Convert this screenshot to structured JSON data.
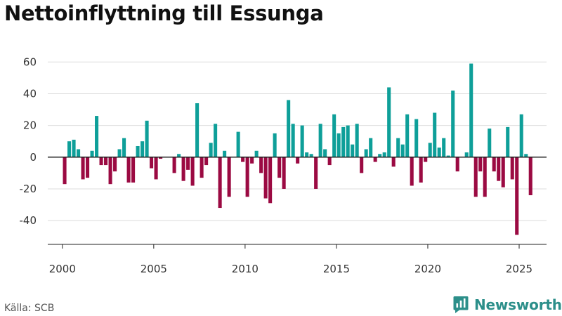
{
  "title": "Nettoinflyttning till Essunga",
  "source": "Källa: SCB",
  "brand": {
    "name": "Newsworthy",
    "icon": "newsworthy-logo-icon"
  },
  "colors": {
    "positive": "#0e9f99",
    "negative": "#9b0a42",
    "axis": "#222222",
    "grid": "#dcdcdc"
  },
  "chart_data": {
    "type": "bar",
    "title": "Nettoinflyttning till Essunga",
    "xlabel": "",
    "ylabel": "",
    "xlim": [
      1999.2,
      2026.5
    ],
    "ylim": [
      -55,
      65
    ],
    "yticks": [
      -40,
      -20,
      0,
      20,
      40,
      60
    ],
    "xticks": [
      2000,
      2005,
      2010,
      2015,
      2020,
      2025
    ],
    "grid": true,
    "period": "quarterly",
    "start": 2000,
    "values": [
      -17,
      10,
      11,
      5,
      -14,
      -13,
      4,
      26,
      -5,
      -5,
      -17,
      -9,
      5,
      12,
      -16,
      -16,
      7,
      10,
      23,
      -7,
      -14,
      -1,
      0,
      0,
      -10,
      2,
      -15,
      -8,
      -18,
      34,
      -13,
      -5,
      9,
      21,
      -32,
      4,
      -25,
      0,
      16,
      -3,
      -25,
      -4,
      4,
      -10,
      -26,
      -29,
      15,
      -13,
      -20,
      36,
      21,
      -4,
      20,
      3,
      2,
      -20,
      21,
      5,
      -5,
      27,
      15,
      19,
      20,
      8,
      21,
      -10,
      5,
      12,
      -3,
      2,
      3,
      44,
      -6,
      12,
      8,
      27,
      -18,
      24,
      -16,
      -3,
      9,
      28,
      6,
      12,
      1,
      42,
      -9,
      0,
      3,
      59,
      -25,
      -9,
      -25,
      18,
      -9,
      -15,
      -19,
      19,
      -14,
      -49,
      27,
      2,
      -24
    ]
  }
}
